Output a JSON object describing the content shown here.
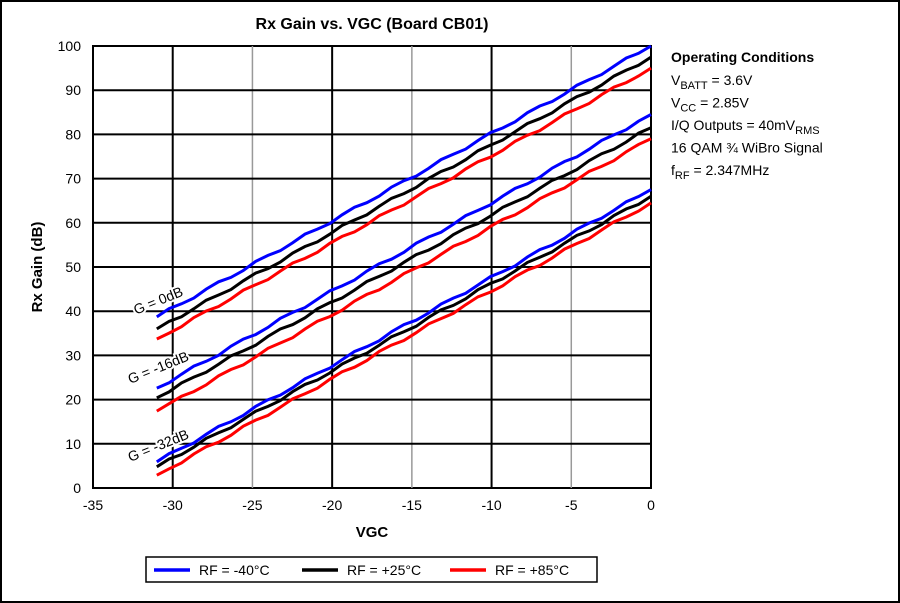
{
  "chart_data": {
    "type": "line",
    "title": "Rx Gain vs. VGC (Board CB01)",
    "xlabel": "VGC",
    "ylabel": "Rx Gain (dB)",
    "xlim": [
      -35,
      0
    ],
    "ylim": [
      0,
      100
    ],
    "xticks": [
      "-35",
      "-30",
      "-25",
      "-20",
      "-15",
      "-10",
      "-5",
      "0"
    ],
    "yticks": [
      "0",
      "10",
      "20",
      "30",
      "40",
      "50",
      "60",
      "70",
      "80",
      "90",
      "100"
    ],
    "grid": true,
    "legend_position": "bottom",
    "annotations": [
      "G = 0dB",
      "G = -16dB",
      "G = -32dB"
    ],
    "conditions": {
      "heading": "Operating Conditions",
      "lines": [
        {
          "main": "V",
          "sub": "BATT",
          "rest": " = 3.6V"
        },
        {
          "main": "V",
          "sub": "CC",
          "rest": " = 2.85V"
        },
        {
          "main": "I/Q Outputs = 40mV",
          "sub": "RMS",
          "rest": ""
        },
        {
          "main": "16 QAM ¾ WiBro Signal",
          "sub": "",
          "rest": ""
        },
        {
          "main": "f",
          "sub": "RF",
          "rest": " = 2.347MHz"
        }
      ]
    },
    "x": [
      -31,
      0
    ],
    "series": [
      {
        "name": "RF = -40°C",
        "color": "#0000ff",
        "group": "G = 0dB",
        "values": [
          38.7,
          100
        ]
      },
      {
        "name": "RF = +25°C",
        "color": "#000000",
        "group": "G = 0dB",
        "values": [
          36,
          97.5
        ]
      },
      {
        "name": "RF = +85°C",
        "color": "#ff0000",
        "group": "G = 0dB",
        "values": [
          33.7,
          95
        ]
      },
      {
        "name": "RF = -40°C",
        "color": "#0000ff",
        "group": "G = -16dB",
        "values": [
          22.6,
          84.5
        ]
      },
      {
        "name": "RF = +25°C",
        "color": "#000000",
        "group": "G = -16dB",
        "values": [
          20.4,
          81.5
        ]
      },
      {
        "name": "RF = +85°C",
        "color": "#ff0000",
        "group": "G = -16dB",
        "values": [
          17.4,
          79
        ]
      },
      {
        "name": "RF = -40°C",
        "color": "#0000ff",
        "group": "G = -32dB",
        "values": [
          5.9,
          67.5
        ]
      },
      {
        "name": "RF = +25°C",
        "color": "#000000",
        "group": "G = -32dB",
        "values": [
          4.8,
          66
        ]
      },
      {
        "name": "RF = +85°C",
        "color": "#ff0000",
        "group": "G = -32dB",
        "values": [
          2.9,
          64.5
        ]
      }
    ],
    "legend": [
      {
        "label": "RF = -40°C",
        "color": "#0000ff"
      },
      {
        "label": "RF = +25°C",
        "color": "#000000"
      },
      {
        "label": "RF = +85°C",
        "color": "#ff0000"
      }
    ]
  }
}
